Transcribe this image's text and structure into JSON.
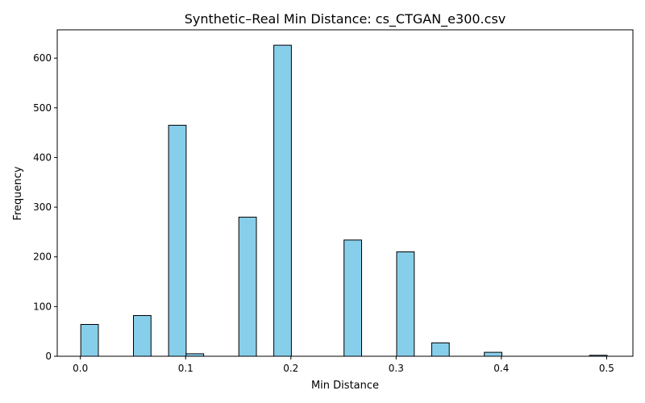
{
  "chart_data": {
    "type": "bar",
    "title": "Synthetic–Real Min Distance: cs_CTGAN_e300.csv",
    "xlabel": "Min Distance",
    "ylabel": "Frequency",
    "xlim": [
      -0.022,
      0.525
    ],
    "ylim": [
      0,
      657
    ],
    "xticks": [
      0.0,
      0.1,
      0.2,
      0.3,
      0.4,
      0.5
    ],
    "xtick_labels": [
      "0.0",
      "0.1",
      "0.2",
      "0.3",
      "0.4",
      "0.5"
    ],
    "yticks": [
      0,
      100,
      200,
      300,
      400,
      500,
      600
    ],
    "ytick_labels": [
      "0",
      "100",
      "200",
      "300",
      "400",
      "500",
      "600"
    ],
    "bin_width": 0.0167,
    "bins": [
      {
        "x_start": 0.0004,
        "value": 64
      },
      {
        "x_start": 0.0504,
        "value": 82
      },
      {
        "x_start": 0.0838,
        "value": 465
      },
      {
        "x_start": 0.1004,
        "value": 5
      },
      {
        "x_start": 0.1505,
        "value": 280
      },
      {
        "x_start": 0.1838,
        "value": 626
      },
      {
        "x_start": 0.2505,
        "value": 234
      },
      {
        "x_start": 0.3005,
        "value": 210
      },
      {
        "x_start": 0.3338,
        "value": 27
      },
      {
        "x_start": 0.3838,
        "value": 8
      },
      {
        "x_start": 0.4838,
        "value": 2
      }
    ],
    "bar_color": "#87ceeb",
    "edge_color": "#000000",
    "grid": false,
    "legend": "none"
  }
}
